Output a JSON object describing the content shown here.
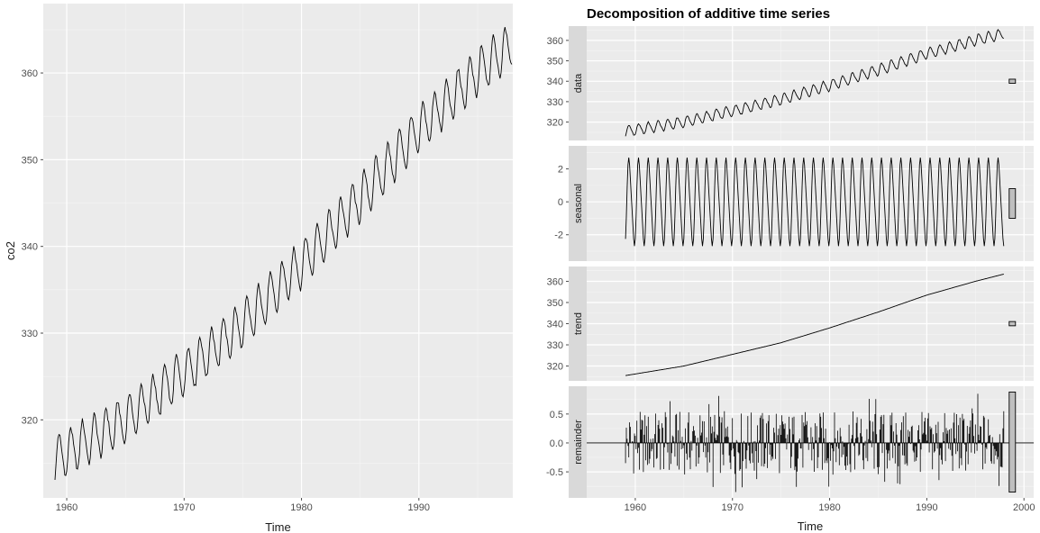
{
  "chart_data": [
    {
      "type": "line",
      "title": "",
      "xlabel": "Time",
      "ylabel": "co2",
      "xlim": [
        1958.0,
        1998.0
      ],
      "ylim": [
        311.0,
        368.0
      ],
      "xticks": [
        1960,
        1970,
        1980,
        1990
      ],
      "xtick_labels": [
        "1960",
        "1970",
        "1980",
        "1990"
      ],
      "yticks": [
        320,
        330,
        340,
        350,
        360
      ],
      "ytick_labels": [
        "320",
        "330",
        "340",
        "350",
        "360"
      ],
      "series": [
        {
          "start": 1959.0,
          "end": 1997.917,
          "frequency": 12,
          "trend": {
            "x": [
              1959,
              1965,
              1970,
              1975,
              1980,
              1985,
              1990,
              1995,
              1998
            ],
            "y": [
              315.5,
              320.0,
              325.5,
              331.0,
              338.0,
              345.5,
              353.5,
              360.0,
              363.5
            ]
          },
          "seasonal_amplitude": 3.0
        }
      ],
      "grid": true
    },
    {
      "type": "line",
      "title": "Decomposition of additive time series",
      "xlabel": "Time",
      "xlim": [
        1955.0,
        2001.0
      ],
      "xticks": [
        1960,
        1970,
        1980,
        1990,
        2000
      ],
      "xtick_labels": [
        "1960",
        "1970",
        "1980",
        "1990",
        "2000"
      ],
      "grid": true,
      "panels": [
        {
          "label": "data",
          "ylim": [
            311,
            367
          ],
          "yticks": [
            320,
            330,
            340,
            350,
            360
          ],
          "ytick_labels": [
            "320",
            "330",
            "340",
            "350",
            "360"
          ],
          "range_bar": [
            339,
            341
          ]
        },
        {
          "label": "seasonal",
          "ylim": [
            -3.6,
            3.4
          ],
          "yticks": [
            -2,
            0,
            2
          ],
          "ytick_labels": [
            "-2",
            "0",
            "2"
          ],
          "range_bar": [
            -1.0,
            0.8
          ]
        },
        {
          "label": "trend",
          "ylim": [
            313,
            367
          ],
          "yticks": [
            320,
            330,
            340,
            350,
            360
          ],
          "ytick_labels": [
            "320",
            "330",
            "340",
            "350",
            "360"
          ],
          "range_bar": [
            339,
            341
          ]
        },
        {
          "label": "remainder",
          "ylim": [
            -0.95,
            0.98
          ],
          "yticks": [
            -0.5,
            0.0,
            0.5
          ],
          "ytick_labels": [
            "-0.5",
            "0.0",
            "0.5"
          ],
          "range_bar": [
            -0.85,
            0.88
          ]
        }
      ]
    }
  ]
}
